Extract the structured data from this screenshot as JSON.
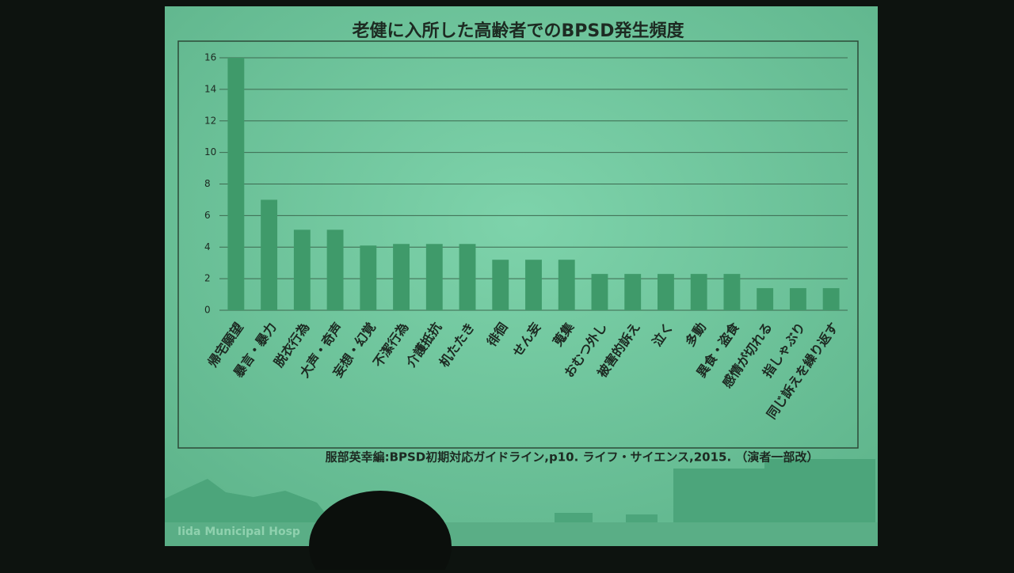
{
  "chart_data": {
    "type": "bar",
    "title": "老健に入所した高齢者でのBPSD発生頻度",
    "categories": [
      "帰宅願望",
      "暴言・暴力",
      "脱衣行為",
      "大声・奇声",
      "妄想・幻覚",
      "不潔行為",
      "介護抵抗",
      "机たたき",
      "徘徊",
      "せん妄",
      "蒐集",
      "おむつ外し",
      "被害的訴え",
      "泣く",
      "多動",
      "異食・盗食",
      "感情が切れる",
      "指しゃぶり",
      "同じ訴えを繰り返す"
    ],
    "values": [
      16,
      7,
      5.1,
      5.1,
      4.1,
      4.2,
      4.2,
      4.2,
      3.2,
      3.2,
      3.2,
      2.3,
      2.3,
      2.3,
      2.3,
      2.3,
      1.4,
      1.4,
      1.4
    ],
    "color": "#3f9a6a",
    "ylim": [
      0,
      16
    ],
    "yticks": [
      0,
      2,
      4,
      6,
      8,
      10,
      12,
      14,
      16
    ],
    "grid": true,
    "source": "服部英幸編:BPSD初期対応ガイドライン,p10. ライフ・サイエンス,2015. （演者一部改）",
    "footer": "Iida Municipal Hosp"
  }
}
